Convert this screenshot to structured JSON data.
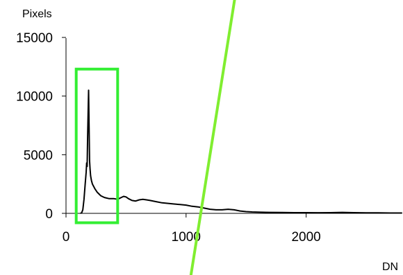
{
  "chart_data": {
    "type": "line",
    "ylabel": "Pixels",
    "xlabel": "DN",
    "xlim": [
      0,
      2800
    ],
    "ylim": [
      0,
      15000
    ],
    "xticks": [
      0,
      1000,
      2000
    ],
    "xtick_labels": [
      "0",
      "1000",
      "2000"
    ],
    "yticks": [
      0,
      5000,
      10000,
      15000
    ],
    "ytick_labels": [
      "0",
      "5000",
      "10000",
      "15000"
    ],
    "grid": false,
    "series": [
      {
        "color": "#000000",
        "points": [
          [
            120,
            0
          ],
          [
            130,
            50
          ],
          [
            140,
            300
          ],
          [
            150,
            1200
          ],
          [
            160,
            2500
          ],
          [
            168,
            3500
          ],
          [
            172,
            4300
          ],
          [
            176,
            4000
          ],
          [
            180,
            6500
          ],
          [
            184,
            8500
          ],
          [
            188,
            10500
          ],
          [
            192,
            7500
          ],
          [
            196,
            4500
          ],
          [
            200,
            3800
          ],
          [
            205,
            3200
          ],
          [
            212,
            2800
          ],
          [
            220,
            2500
          ],
          [
            240,
            2100
          ],
          [
            260,
            1800
          ],
          [
            290,
            1500
          ],
          [
            320,
            1350
          ],
          [
            360,
            1250
          ],
          [
            400,
            1250
          ],
          [
            430,
            1200
          ],
          [
            460,
            1350
          ],
          [
            480,
            1450
          ],
          [
            500,
            1400
          ],
          [
            520,
            1250
          ],
          [
            550,
            1100
          ],
          [
            580,
            1050
          ],
          [
            610,
            1150
          ],
          [
            640,
            1200
          ],
          [
            670,
            1150
          ],
          [
            700,
            1100
          ],
          [
            750,
            1000
          ],
          [
            800,
            900
          ],
          [
            850,
            850
          ],
          [
            900,
            800
          ],
          [
            950,
            750
          ],
          [
            1000,
            700
          ],
          [
            1050,
            600
          ],
          [
            1100,
            550
          ],
          [
            1150,
            450
          ],
          [
            1200,
            350
          ],
          [
            1250,
            300
          ],
          [
            1300,
            300
          ],
          [
            1350,
            350
          ],
          [
            1400,
            300
          ],
          [
            1450,
            200
          ],
          [
            1500,
            150
          ],
          [
            1550,
            120
          ],
          [
            1600,
            100
          ],
          [
            1700,
            80
          ],
          [
            1800,
            70
          ],
          [
            1900,
            60
          ],
          [
            2000,
            60
          ],
          [
            2100,
            55
          ],
          [
            2200,
            60
          ],
          [
            2300,
            80
          ],
          [
            2400,
            60
          ],
          [
            2500,
            50
          ],
          [
            2600,
            40
          ],
          [
            2700,
            30
          ],
          [
            2800,
            30
          ]
        ]
      }
    ],
    "annotations": [
      {
        "type": "rect",
        "color": "#33ee33",
        "x_range": [
          85,
          430
        ],
        "y_range": [
          -800,
          12300
        ]
      },
      {
        "type": "line",
        "color": "#80ee30",
        "from": [
          1040,
          -5300
        ],
        "to": [
          1410,
          18600
        ]
      }
    ]
  }
}
